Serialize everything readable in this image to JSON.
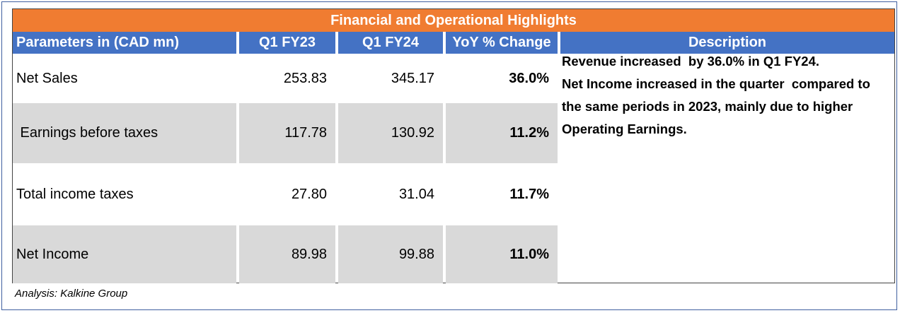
{
  "title": "Financial and Operational Highlights",
  "headers": [
    "Parameters in (CAD mn)",
    "Q1 FY23",
    "Q1 FY24",
    "YoY % Change",
    "Description"
  ],
  "rows": [
    {
      "label": "Net Sales",
      "q1fy23": "253.83",
      "q1fy24": "345.17",
      "yoy": "36.0%"
    },
    {
      "label": " Earnings before taxes",
      "q1fy23": "117.78",
      "q1fy24": "130.92",
      "yoy": "11.2%"
    },
    {
      "label": "Total income taxes",
      "q1fy23": "27.80",
      "q1fy24": "31.04",
      "yoy": "11.7%"
    },
    {
      "label": "Net Income",
      "q1fy23": "89.98",
      "q1fy24": "99.88",
      "yoy": "11.0%"
    }
  ],
  "description": [
    "Revenue increased  by 36.0% in Q1 FY24.",
    "Net Income increased in the quarter  compared to the same periods in 2023, mainly due to higher Operating Earnings."
  ],
  "source": "Analysis: Kalkine Group"
}
